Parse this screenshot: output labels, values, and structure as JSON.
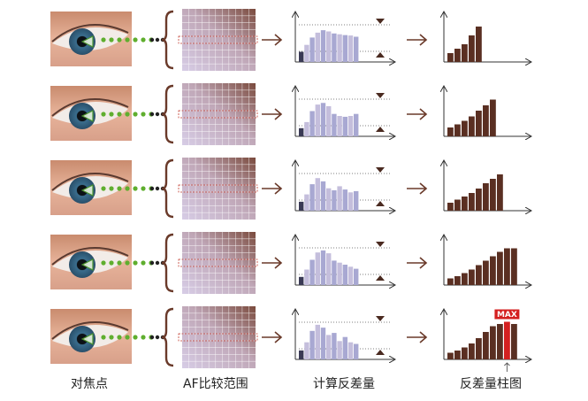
{
  "captions": {
    "focus_point": "对焦点",
    "af_range": "AF比较范围",
    "calc_contrast": "计算反差量",
    "contrast_histogram": "反差量柱图"
  },
  "max_label": "MAX",
  "colors": {
    "dots": "#5fae2e",
    "arrow": "#6a3a2a",
    "contrast_bar_top": "#b8b8dc",
    "contrast_bar_dark": "#3a3a55",
    "histogram_bar": "#5a2f22",
    "max_bar": "#d42020",
    "axis": "#333333"
  },
  "rows": [
    {
      "contrast_levels": [
        0.25,
        0.42,
        0.6,
        0.72,
        0.78,
        0.75,
        0.7,
        0.68,
        0.66,
        0.65,
        0.62
      ],
      "histogram_levels": [
        0.2,
        0.3,
        0.4,
        0.6,
        0.8
      ]
    },
    {
      "contrast_levels": [
        0.2,
        0.35,
        0.62,
        0.78,
        0.82,
        0.74,
        0.55,
        0.5,
        0.48,
        0.5,
        0.55
      ],
      "histogram_levels": [
        0.2,
        0.27,
        0.35,
        0.45,
        0.58,
        0.7,
        0.83
      ]
    },
    {
      "contrast_levels": [
        0.22,
        0.4,
        0.65,
        0.8,
        0.72,
        0.55,
        0.5,
        0.6,
        0.52,
        0.45,
        0.48
      ],
      "histogram_levels": [
        0.18,
        0.25,
        0.32,
        0.4,
        0.5,
        0.62,
        0.72,
        0.82
      ]
    },
    {
      "contrast_levels": [
        0.2,
        0.38,
        0.62,
        0.8,
        0.85,
        0.78,
        0.6,
        0.55,
        0.5,
        0.45,
        0.4
      ],
      "histogram_levels": [
        0.15,
        0.2,
        0.27,
        0.35,
        0.45,
        0.55,
        0.65,
        0.75,
        0.83,
        0.83
      ]
    },
    {
      "contrast_levels": [
        0.22,
        0.42,
        0.7,
        0.85,
        0.78,
        0.6,
        0.65,
        0.45,
        0.55,
        0.42,
        0.38
      ],
      "histogram_levels": [
        0.15,
        0.2,
        0.27,
        0.36,
        0.48,
        0.62,
        0.75,
        0.8,
        0.85,
        0.8
      ]
    }
  ],
  "max_index": 8
}
